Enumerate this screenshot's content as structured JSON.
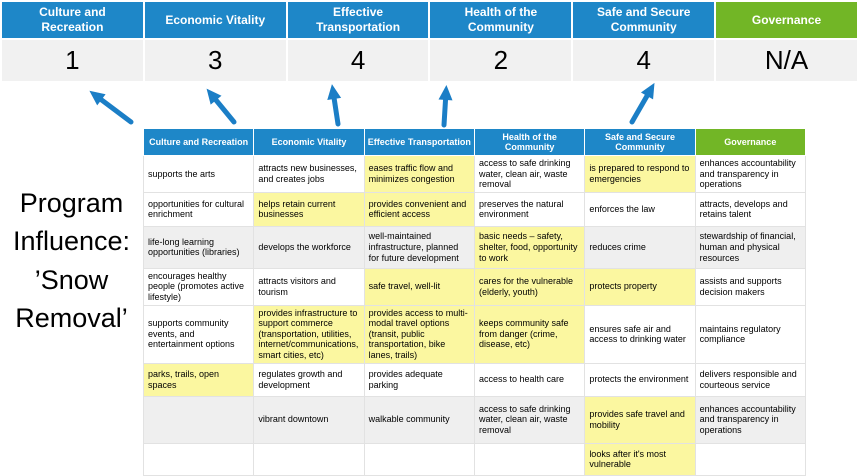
{
  "program_label": "Program Influence: ’Snow Removal’",
  "colors": {
    "header_blue": "#1e87c8",
    "header_green": "#72b626",
    "highlight_yellow": "#fbf7a0",
    "score_row_bg": "#f1f1f1",
    "shaded_row_gray": "#efefef",
    "arrow_blue": "#1b7ec6"
  },
  "summary": {
    "items": [
      {
        "label": "Culture and Recreation",
        "value": "1",
        "accent": "blue"
      },
      {
        "label": "Economic Vitality",
        "value": "3",
        "accent": "blue"
      },
      {
        "label": "Effective Transportation",
        "value": "4",
        "accent": "blue"
      },
      {
        "label": "Health of the Community",
        "value": "2",
        "accent": "blue"
      },
      {
        "label": "Safe and Secure Community",
        "value": "4",
        "accent": "blue"
      },
      {
        "label": "Governance",
        "value": "N/A",
        "accent": "green"
      }
    ]
  },
  "matrix": {
    "headers": [
      {
        "label": "Culture and Recreation",
        "accent": "blue"
      },
      {
        "label": "Economic Vitality",
        "accent": "blue"
      },
      {
        "label": "Effective Transportation",
        "accent": "blue"
      },
      {
        "label": "Health of the Community",
        "accent": "blue"
      },
      {
        "label": "Safe and Secure Community",
        "accent": "blue"
      },
      {
        "label": "Governance",
        "accent": "green"
      }
    ],
    "rows": [
      {
        "shaded": false,
        "cells": [
          {
            "t": "supports the arts",
            "h": false
          },
          {
            "t": "attracts new businesses, and creates jobs",
            "h": false
          },
          {
            "t": "eases traffic flow and minimizes congestion",
            "h": true
          },
          {
            "t": "access to safe drinking water, clean air, waste removal",
            "h": false
          },
          {
            "t": "is prepared to respond to emergencies",
            "h": true
          },
          {
            "t": "enhances accountability and transparency in operations",
            "h": false
          }
        ]
      },
      {
        "shaded": false,
        "cells": [
          {
            "t": "opportunities for cultural enrichment",
            "h": false
          },
          {
            "t": "helps retain current businesses",
            "h": true
          },
          {
            "t": "provides convenient and efficient access",
            "h": true
          },
          {
            "t": "preserves the natural environment",
            "h": false
          },
          {
            "t": "enforces the law",
            "h": false
          },
          {
            "t": "attracts, develops and retains talent",
            "h": false
          }
        ]
      },
      {
        "shaded": true,
        "cells": [
          {
            "t": "life-long learning opportunities (libraries)",
            "h": false
          },
          {
            "t": "develops the workforce",
            "h": false
          },
          {
            "t": "well-maintained infrastructure, planned for future development",
            "h": false
          },
          {
            "t": "basic needs – safety, shelter, food, opportunity to work",
            "h": true
          },
          {
            "t": "reduces crime",
            "h": false
          },
          {
            "t": "stewardship of financial, human and physical resources",
            "h": false
          }
        ]
      },
      {
        "shaded": false,
        "cells": [
          {
            "t": "encourages healthy people (promotes active lifestyle)",
            "h": false
          },
          {
            "t": "attracts visitors and tourism",
            "h": false
          },
          {
            "t": "safe travel, well-lit",
            "h": true
          },
          {
            "t": "cares for the vulnerable (elderly, youth)",
            "h": true
          },
          {
            "t": "protects property",
            "h": true
          },
          {
            "t": "assists and supports decision makers",
            "h": false
          }
        ]
      },
      {
        "shaded": false,
        "cells": [
          {
            "t": "supports community events, and entertainment options",
            "h": false
          },
          {
            "t": "provides infrastructure to support commerce (transportation, utilities, internet/communications, smart cities, etc)",
            "h": true
          },
          {
            "t": "provides access to multi-modal travel options (transit, public transportation, bike lanes, trails)",
            "h": true
          },
          {
            "t": "keeps community safe from danger (crime, disease, etc)",
            "h": true
          },
          {
            "t": "ensures safe air and access to drinking water",
            "h": false
          },
          {
            "t": "maintains regulatory compliance",
            "h": false
          }
        ]
      },
      {
        "shaded": false,
        "cells": [
          {
            "t": "parks, trails, open spaces",
            "h": true
          },
          {
            "t": "regulates growth and development",
            "h": false
          },
          {
            "t": "provides adequate parking",
            "h": false
          },
          {
            "t": "access to health care",
            "h": false
          },
          {
            "t": "protects the environment",
            "h": false
          },
          {
            "t": "delivers responsible and courteous service",
            "h": false
          }
        ]
      },
      {
        "shaded": true,
        "cells": [
          {
            "t": "",
            "h": false
          },
          {
            "t": "vibrant downtown",
            "h": false
          },
          {
            "t": "walkable community",
            "h": false
          },
          {
            "t": "access to safe drinking water, clean air, waste removal",
            "h": false
          },
          {
            "t": "provides safe travel and mobility",
            "h": true
          },
          {
            "t": "enhances accountability and transparency in operations",
            "h": false
          }
        ]
      },
      {
        "shaded": false,
        "cells": [
          {
            "t": "",
            "h": false
          },
          {
            "t": "",
            "h": false
          },
          {
            "t": "",
            "h": false
          },
          {
            "t": "",
            "h": false
          },
          {
            "t": "looks after it's most vulnerable",
            "h": true
          },
          {
            "t": "",
            "h": false
          }
        ]
      }
    ]
  }
}
